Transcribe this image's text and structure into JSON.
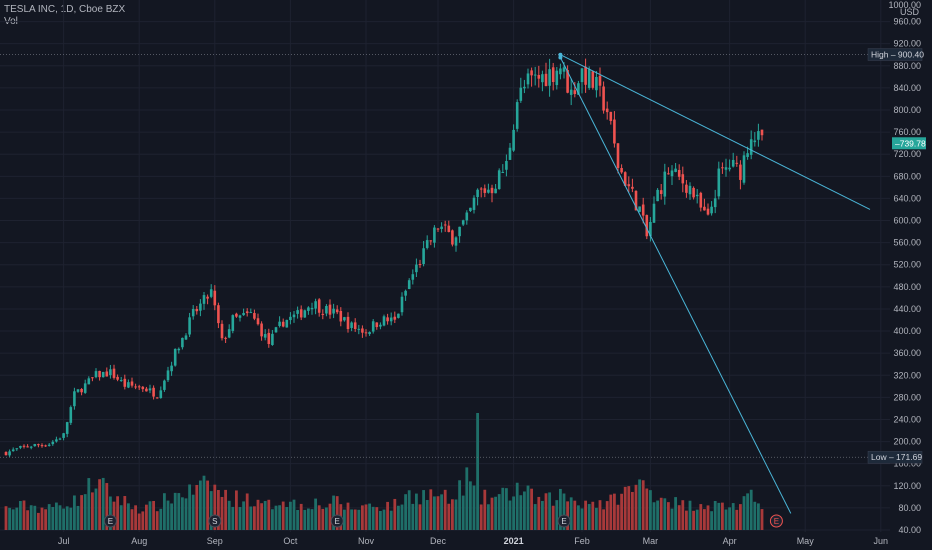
{
  "header": {
    "title": "TESLA INC, 1D, Cboe BZX",
    "volume_label": "Vol"
  },
  "colors": {
    "background": "#131722",
    "grid": "#1e2230",
    "up": "#26a69a",
    "down": "#ef5350",
    "up_volume": "#1f6f69",
    "down_volume": "#a8393a",
    "trendline": "#4ab6d8",
    "axis_text": "#b2b5be",
    "marker_line": "#4a4e5a"
  },
  "chart_data": {
    "type": "candlestick",
    "currency_label": "USD",
    "y_ticks": [
      40,
      80,
      120,
      160,
      200,
      240,
      280,
      320,
      360,
      400,
      440,
      480,
      520,
      560,
      600,
      640,
      680,
      720,
      760,
      800,
      840,
      880,
      920,
      960
    ],
    "y_tick_labels": [
      "40.00",
      "80.00",
      "120.00",
      "160.00",
      "200.00",
      "240.00",
      "280.00",
      "320.00",
      "360.00",
      "400.00",
      "440.00",
      "480.00",
      "520.00",
      "560.00",
      "600.00",
      "640.00",
      "680.00",
      "720.00",
      "760.00",
      "800.00",
      "840.00",
      "880.00",
      "920.00",
      "960.00"
    ],
    "top_label": "1000.00",
    "ylim": [
      40,
      990
    ],
    "x_labels": [
      {
        "text": "Jul",
        "day": 16,
        "bold": false
      },
      {
        "text": "Aug",
        "day": 37,
        "bold": false
      },
      {
        "text": "Sep",
        "day": 58,
        "bold": false
      },
      {
        "text": "Oct",
        "day": 79,
        "bold": false
      },
      {
        "text": "Nov",
        "day": 100,
        "bold": false
      },
      {
        "text": "Dec",
        "day": 120,
        "bold": false
      },
      {
        "text": "2021",
        "day": 141,
        "bold": true
      },
      {
        "text": "Feb",
        "day": 160,
        "bold": false
      },
      {
        "text": "Mar",
        "day": 179,
        "bold": false
      },
      {
        "text": "Apr",
        "day": 201,
        "bold": false
      },
      {
        "text": "May",
        "day": 222,
        "bold": false
      },
      {
        "text": "Jun",
        "day": 243,
        "bold": false
      }
    ],
    "high": {
      "label": "High",
      "value": 900.4,
      "value_text": "900.40"
    },
    "low": {
      "label": "Low",
      "value": 171.69,
      "value_text": "171.69"
    },
    "last": {
      "value": 739.78,
      "value_text": "739.78"
    },
    "events": [
      {
        "letter": "E",
        "day": 29
      },
      {
        "letter": "S",
        "day": 58
      },
      {
        "letter": "E",
        "day": 92
      },
      {
        "letter": "E",
        "day": 155
      },
      {
        "letter": "E",
        "day": 214
      }
    ],
    "trendlines": [
      {
        "from": {
          "day": 154,
          "value": 900
        },
        "to": {
          "day": 240,
          "value": 620
        }
      },
      {
        "from": {
          "day": 154,
          "value": 895
        },
        "to": {
          "day": 218,
          "value": 70
        }
      }
    ],
    "anchors": [
      [
        0,
        180,
        0.6
      ],
      [
        6,
        192,
        0.7
      ],
      [
        12,
        196,
        0.6
      ],
      [
        16,
        212,
        0.8
      ],
      [
        19,
        285,
        0.8
      ],
      [
        25,
        320,
        1.4
      ],
      [
        29,
        325,
        1.0
      ],
      [
        33,
        302,
        0.8
      ],
      [
        38,
        298,
        0.6
      ],
      [
        42,
        285,
        0.7
      ],
      [
        47,
        360,
        1.0
      ],
      [
        52,
        430,
        1.1
      ],
      [
        57,
        470,
        1.3
      ],
      [
        60,
        380,
        1.0
      ],
      [
        63,
        420,
        0.9
      ],
      [
        68,
        430,
        0.9
      ],
      [
        70,
        410,
        0.7
      ],
      [
        73,
        378,
        0.7
      ],
      [
        77,
        418,
        0.9
      ],
      [
        81,
        428,
        0.7
      ],
      [
        85,
        452,
        0.8
      ],
      [
        88,
        440,
        0.7
      ],
      [
        92,
        430,
        0.8
      ],
      [
        96,
        408,
        0.6
      ],
      [
        100,
        400,
        0.7
      ],
      [
        104,
        420,
        0.7
      ],
      [
        108,
        418,
        0.7
      ],
      [
        112,
        490,
        1.0
      ],
      [
        116,
        540,
        1.0
      ],
      [
        120,
        590,
        1.0
      ],
      [
        124,
        570,
        0.8
      ],
      [
        128,
        600,
        1.5
      ],
      [
        131,
        650,
        0.9
      ],
      [
        135,
        660,
        0.9
      ],
      [
        139,
        700,
        1.0
      ],
      [
        142,
        820,
        1.2
      ],
      [
        145,
        850,
        1.0
      ],
      [
        149,
        860,
        0.8
      ],
      [
        152,
        870,
        0.9
      ],
      [
        154,
        880,
        1.0
      ],
      [
        157,
        830,
        0.9
      ],
      [
        160,
        870,
        0.8
      ],
      [
        164,
        840,
        0.8
      ],
      [
        167,
        800,
        0.7
      ],
      [
        170,
        700,
        1.0
      ],
      [
        173,
        660,
        1.1
      ],
      [
        176,
        620,
        1.3
      ],
      [
        178,
        570,
        1.2
      ],
      [
        181,
        650,
        1.0
      ],
      [
        184,
        690,
        0.9
      ],
      [
        187,
        675,
        0.7
      ],
      [
        190,
        660,
        0.7
      ],
      [
        193,
        620,
        0.8
      ],
      [
        195,
        600,
        0.7
      ],
      [
        198,
        680,
        0.7
      ],
      [
        201,
        700,
        0.7
      ],
      [
        204,
        690,
        0.7
      ],
      [
        207,
        760,
        0.9
      ],
      [
        210,
        740,
        0.8
      ]
    ],
    "volume_ylim": [
      0,
      200
    ]
  }
}
